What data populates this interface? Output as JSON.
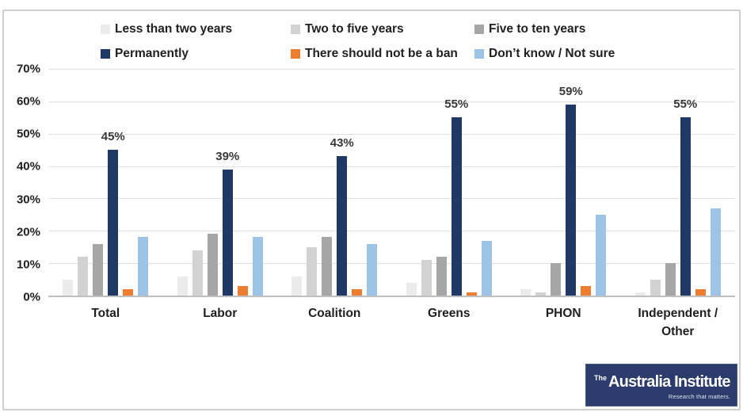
{
  "chart_data": {
    "type": "bar",
    "title": "",
    "categories": [
      "Total",
      "Labor",
      "Coalition",
      "Greens",
      "PHON",
      "Independent / Other"
    ],
    "series": [
      {
        "name": "Less than two years",
        "color": "#ebebeb",
        "values": [
          5,
          6,
          6,
          4,
          2,
          1
        ]
      },
      {
        "name": "Two to five years",
        "color": "#d2d2d2",
        "values": [
          12,
          14,
          15,
          11,
          1,
          5
        ]
      },
      {
        "name": "Five to ten years",
        "color": "#a6a6a6",
        "values": [
          16,
          19,
          18,
          12,
          10,
          10
        ]
      },
      {
        "name": "Permanently",
        "color": "#1f3864",
        "values": [
          45,
          39,
          43,
          55,
          59,
          55
        ],
        "data_labels": [
          "45%",
          "39%",
          "43%",
          "55%",
          "59%",
          "55%"
        ]
      },
      {
        "name": "There should not be a ban",
        "color": "#ed7d31",
        "values": [
          2,
          3,
          2,
          1,
          3,
          2
        ]
      },
      {
        "name": "Don’t know / Not sure",
        "color": "#9dc3e6",
        "values": [
          18,
          18,
          16,
          17,
          25,
          27
        ]
      }
    ],
    "xlabel": "",
    "ylabel": "",
    "ylim": [
      0,
      70
    ],
    "y_ticks": [
      "0%",
      "10%",
      "20%",
      "30%",
      "40%",
      "50%",
      "60%",
      "70%"
    ],
    "grid": true,
    "grid_color": "#e0e0e0",
    "legend_position": "top"
  },
  "logo": {
    "prefix": "The",
    "name": "Australia Institute",
    "tagline": "Research that matters.",
    "background_color": "#2b3b6b",
    "text_color": "#ffffff"
  }
}
